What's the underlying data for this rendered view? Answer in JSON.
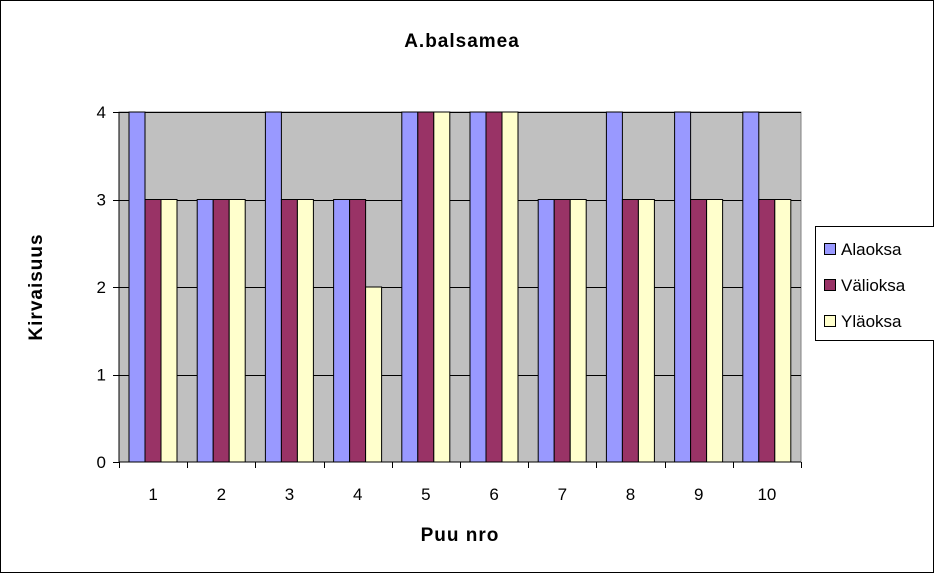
{
  "chart_data": {
    "type": "bar",
    "title": "A.balsamea",
    "xlabel": "Puu nro",
    "ylabel": "Kirvaisuus",
    "categories": [
      "1",
      "2",
      "3",
      "4",
      "5",
      "6",
      "7",
      "8",
      "9",
      "10"
    ],
    "series": [
      {
        "name": "Alaoksa",
        "color": "#9999ff",
        "values": [
          4,
          3,
          4,
          3,
          4,
          4,
          3,
          4,
          4,
          4
        ]
      },
      {
        "name": "Välioksa",
        "color": "#993366",
        "values": [
          3,
          3,
          3,
          3,
          4,
          4,
          3,
          3,
          3,
          3
        ]
      },
      {
        "name": "Yläoksa",
        "color": "#ffffcc",
        "values": [
          3,
          3,
          3,
          2,
          4,
          4,
          3,
          3,
          3,
          3
        ]
      }
    ],
    "ylim": [
      0,
      4
    ],
    "yticks": [
      "0",
      "1",
      "2",
      "3",
      "4"
    ],
    "grid": true,
    "plot_background": "#c0c0c0",
    "legend_position": "right"
  }
}
